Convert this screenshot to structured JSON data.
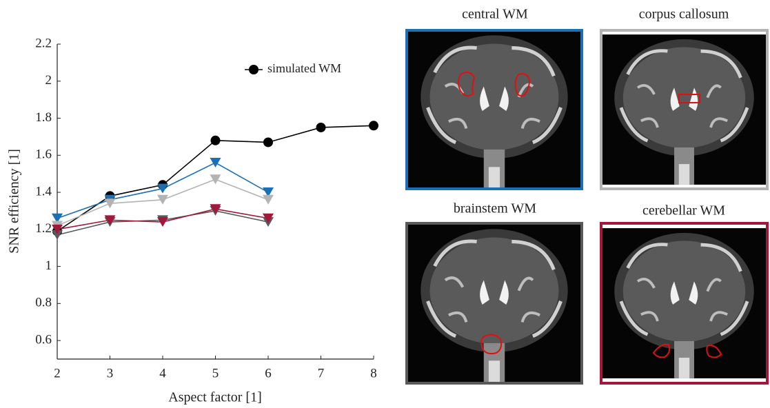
{
  "chart_data": {
    "type": "line",
    "xlabel": "Aspect factor [1]",
    "ylabel": "SNR efficiency [1]",
    "x": [
      2,
      3,
      4,
      5,
      6,
      7,
      8
    ],
    "xlim": [
      2,
      8
    ],
    "xticks": [
      2,
      3,
      4,
      5,
      6,
      7,
      8
    ],
    "ylim": [
      0.5,
      2.2
    ],
    "yticks": [
      0.6,
      0.8,
      1,
      1.2,
      1.4,
      1.6,
      1.8,
      2,
      2.2
    ],
    "legend": "upper right",
    "series": [
      {
        "name": "simulated WM",
        "color": "#000000",
        "marker": "circle",
        "values": [
          1.19,
          1.38,
          1.44,
          1.68,
          1.67,
          1.75,
          1.76
        ]
      },
      {
        "name": "central WM",
        "color": "#1a6fb5",
        "marker": "triangle",
        "values": [
          1.26,
          1.36,
          1.42,
          1.56,
          1.4,
          null,
          null
        ]
      },
      {
        "name": "corpus callosum",
        "color": "#b3b3b3",
        "marker": "triangle",
        "values": [
          1.22,
          1.34,
          1.36,
          1.47,
          1.36,
          null,
          null
        ]
      },
      {
        "name": "brainstem WM",
        "color": "#595959",
        "marker": "triangle",
        "values": [
          1.17,
          1.24,
          1.25,
          1.3,
          1.24,
          null,
          null
        ]
      },
      {
        "name": "cerebellar WM",
        "color": "#a3173b",
        "marker": "triangle",
        "values": [
          1.2,
          1.25,
          1.24,
          1.31,
          1.26,
          null,
          null
        ]
      }
    ]
  }
}
